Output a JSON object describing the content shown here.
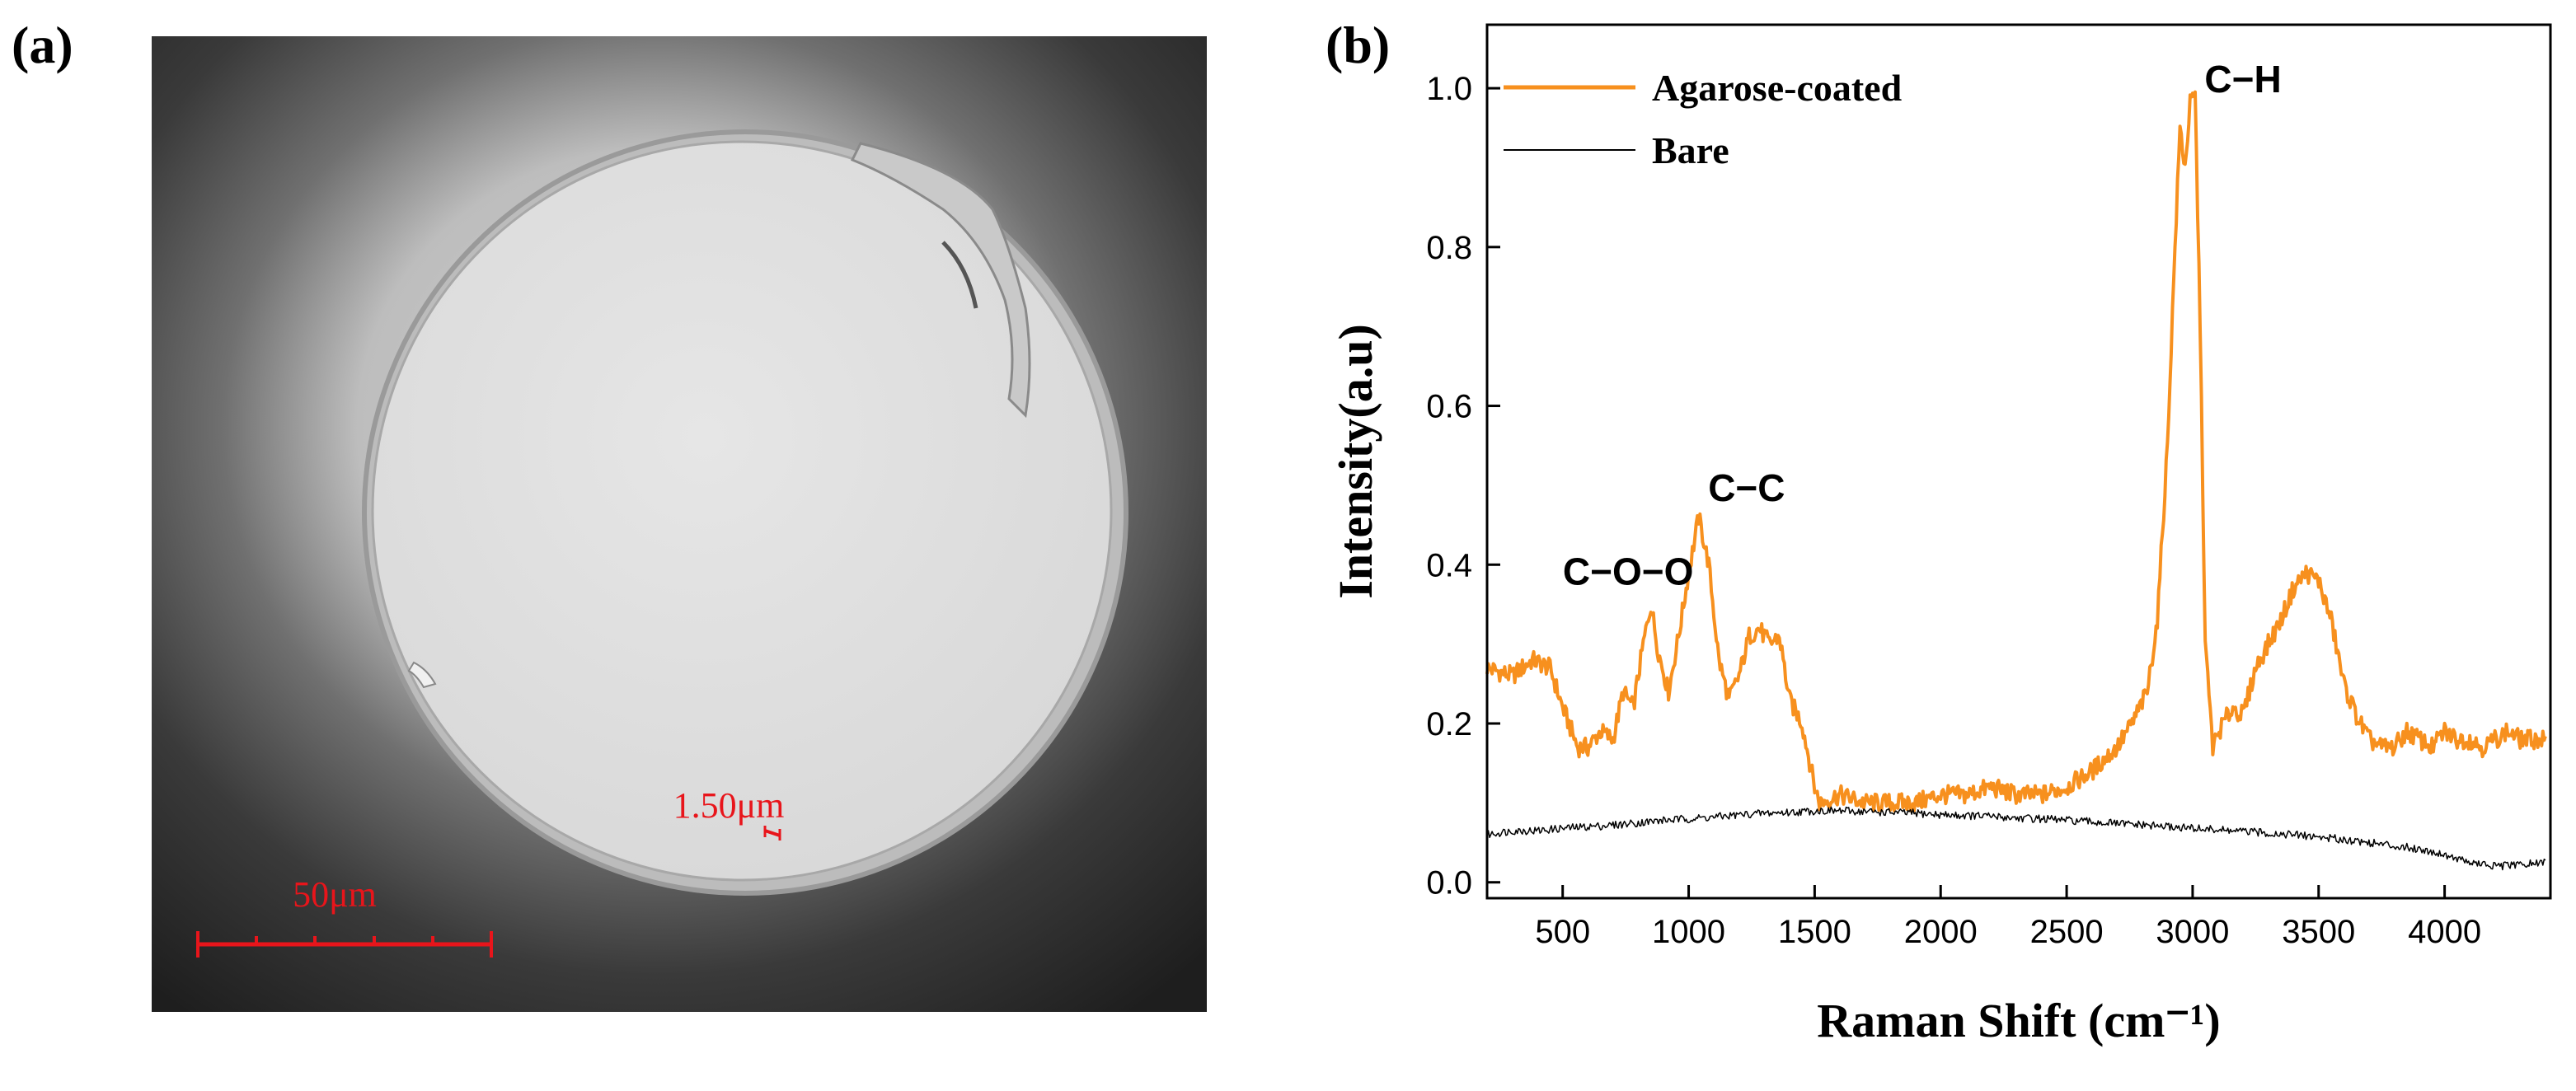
{
  "panel_a": {
    "label": "(a)",
    "scale_bar_label": "50μm",
    "thickness_label": "1.50μm",
    "colors": {
      "annotation": "#e8151b",
      "background": "#2a2a2a",
      "fiber": "#e2e2e2"
    }
  },
  "panel_b": {
    "label": "(b)"
  },
  "chart_data": {
    "type": "line",
    "title": "",
    "xlabel": "Raman Shift (cm⁻¹)",
    "ylabel": "Intensity(a.u)",
    "xlim": [
      200,
      4420
    ],
    "ylim": [
      -0.02,
      1.08
    ],
    "xticks": [
      500,
      1000,
      1500,
      2000,
      2500,
      3000,
      3500,
      4000
    ],
    "yticks": [
      0.0,
      0.2,
      0.4,
      0.6,
      0.8,
      1.0
    ],
    "ytick_labels": [
      "0.0",
      "0.2",
      "0.4",
      "0.6",
      "0.8",
      "1.0"
    ],
    "grid": false,
    "legend_position": "top-left",
    "series": [
      {
        "name": "Agarose-coated",
        "color": "#f7901e",
        "x": [
          200,
          300,
          380,
          450,
          500,
          560,
          600,
          650,
          700,
          740,
          780,
          820,
          850,
          880,
          920,
          960,
          1000,
          1040,
          1080,
          1120,
          1160,
          1200,
          1240,
          1280,
          1320,
          1360,
          1400,
          1450,
          1500,
          1520,
          1600,
          1700,
          1800,
          1900,
          2000,
          2100,
          2200,
          2300,
          2400,
          2500,
          2600,
          2700,
          2760,
          2820,
          2860,
          2900,
          2930,
          2950,
          2970,
          2990,
          3010,
          3030,
          3050,
          3080,
          3120,
          3160,
          3200,
          3250,
          3300,
          3350,
          3400,
          3450,
          3500,
          3550,
          3600,
          3650,
          3700,
          3750,
          3800,
          3850,
          3900,
          3950,
          4000,
          4050,
          4100,
          4150,
          4200,
          4250,
          4300,
          4350,
          4400
        ],
        "values": [
          0.27,
          0.26,
          0.28,
          0.27,
          0.22,
          0.17,
          0.17,
          0.19,
          0.18,
          0.24,
          0.22,
          0.3,
          0.35,
          0.29,
          0.24,
          0.31,
          0.39,
          0.46,
          0.4,
          0.28,
          0.23,
          0.26,
          0.31,
          0.32,
          0.3,
          0.31,
          0.23,
          0.2,
          0.12,
          0.1,
          0.11,
          0.1,
          0.1,
          0.1,
          0.11,
          0.11,
          0.12,
          0.11,
          0.11,
          0.12,
          0.14,
          0.17,
          0.2,
          0.24,
          0.33,
          0.55,
          0.8,
          0.95,
          0.9,
          0.98,
          0.99,
          0.7,
          0.3,
          0.17,
          0.2,
          0.22,
          0.21,
          0.27,
          0.3,
          0.33,
          0.37,
          0.39,
          0.38,
          0.33,
          0.25,
          0.21,
          0.18,
          0.17,
          0.17,
          0.19,
          0.18,
          0.17,
          0.19,
          0.18,
          0.18,
          0.17,
          0.18,
          0.19,
          0.18,
          0.18,
          0.18
        ]
      },
      {
        "name": "Bare",
        "color": "#000000",
        "x": [
          200,
          300,
          400,
          500,
          600,
          700,
          800,
          900,
          1000,
          1100,
          1200,
          1300,
          1400,
          1500,
          1600,
          1700,
          1800,
          1900,
          2000,
          2100,
          2200,
          2300,
          2400,
          2500,
          2600,
          2700,
          2800,
          2900,
          3000,
          3100,
          3200,
          3300,
          3400,
          3500,
          3600,
          3700,
          3800,
          3900,
          4000,
          4100,
          4200,
          4300,
          4400
        ],
        "values": [
          0.06,
          0.065,
          0.065,
          0.068,
          0.07,
          0.072,
          0.075,
          0.078,
          0.08,
          0.082,
          0.085,
          0.087,
          0.088,
          0.09,
          0.09,
          0.089,
          0.088,
          0.087,
          0.085,
          0.084,
          0.083,
          0.081,
          0.08,
          0.078,
          0.076,
          0.074,
          0.072,
          0.07,
          0.068,
          0.066,
          0.064,
          0.062,
          0.06,
          0.057,
          0.054,
          0.05,
          0.046,
          0.042,
          0.035,
          0.025,
          0.02,
          0.022,
          0.025
        ]
      }
    ],
    "annotations": [
      {
        "text": "C−O−O",
        "x": 760,
        "y": 0.375
      },
      {
        "text": "C−C",
        "x": 1230,
        "y": 0.48
      },
      {
        "text": "C−H",
        "x": 3200,
        "y": 0.995
      }
    ]
  }
}
